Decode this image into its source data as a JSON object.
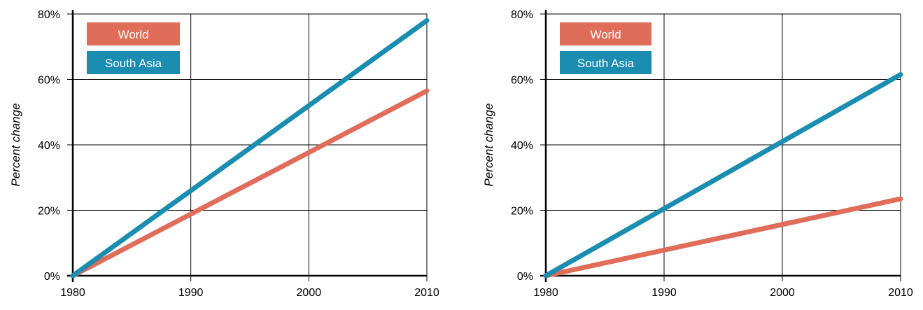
{
  "chart_data": [
    {
      "type": "line",
      "ylabel": "Percent change",
      "xlabel": "",
      "title": "",
      "x_ticks": [
        "1980",
        "1990",
        "2000",
        "2010"
      ],
      "y_ticks": [
        "0%",
        "20%",
        "40%",
        "60%",
        "80%"
      ],
      "xlim": [
        1980,
        2010
      ],
      "ylim": [
        0,
        80
      ],
      "grid": true,
      "legend_position": "top-left",
      "series": [
        {
          "name": "World",
          "color": "#E06C5A",
          "x": [
            1980,
            2010
          ],
          "y": [
            0,
            56.5
          ]
        },
        {
          "name": "South Asia",
          "color": "#1A8DB1",
          "x": [
            1980,
            2010
          ],
          "y": [
            0,
            78
          ]
        }
      ]
    },
    {
      "type": "line",
      "ylabel": "Percent change",
      "xlabel": "",
      "title": "",
      "x_ticks": [
        "1980",
        "1990",
        "2000",
        "2010"
      ],
      "y_ticks": [
        "0%",
        "20%",
        "40%",
        "60%",
        "80%"
      ],
      "xlim": [
        1980,
        2010
      ],
      "ylim": [
        0,
        80
      ],
      "grid": true,
      "legend_position": "top-left",
      "series": [
        {
          "name": "World",
          "color": "#E06C5A",
          "x": [
            1980,
            2010
          ],
          "y": [
            0,
            23.5
          ]
        },
        {
          "name": "South Asia",
          "color": "#1A8DB1",
          "x": [
            1980,
            2010
          ],
          "y": [
            0,
            61.5
          ]
        }
      ]
    }
  ]
}
